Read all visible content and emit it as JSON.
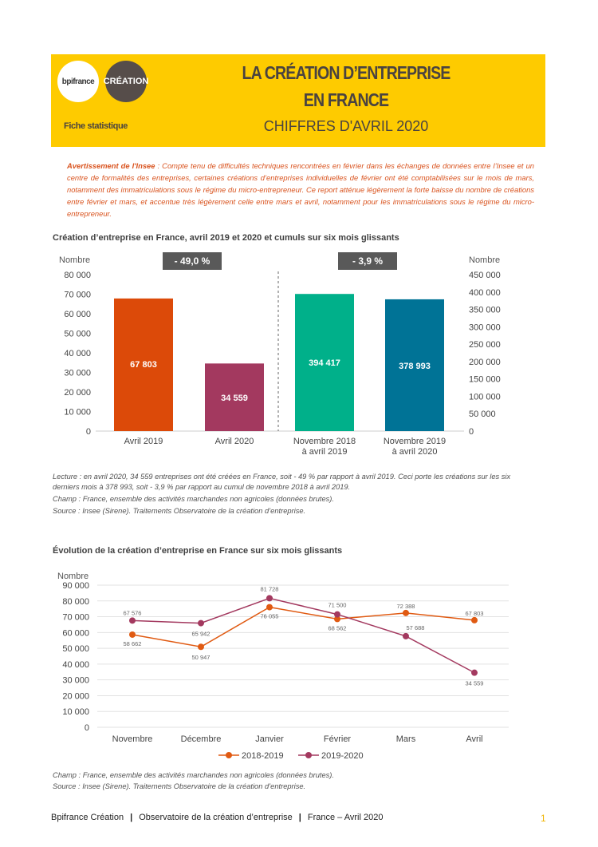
{
  "header": {
    "logo_bpi": "bpifrance",
    "logo_creation": "CRÉATION",
    "subtitle_left": "Fiche statistique",
    "title_line1": "LA CRÉATION D’ENTREPRISE",
    "title_line2": "EN FRANCE",
    "title_line3": "CHIFFRES D'AVRIL 2020"
  },
  "warning": {
    "label": "Avertissement de l'Insee",
    "text": " : Compte tenu de difficultés techniques rencontrées en février dans les échanges de données entre l’Insee et un centre de formalités des entreprises, certaines créations d’entreprises individuelles de février ont été comptabilisées sur le mois de mars, notamment des immatriculations sous le régime du micro-entrepreneur. Ce report atténue légèrement la forte baisse du nombre de créations entre février et mars, et accentue très légèrement celle entre mars et avril, notamment pour les immatriculations sous le régime du micro-entrepreneur."
  },
  "chart1_notes": {
    "lecture": "Lecture : en avril 2020, 34 559 entreprises ont été créées en France, soit - 49 % par rapport à avril 2019. Ceci porte les créations sur les six derniers mois à 378 993, soit - 3,9 % par rapport au cumul de novembre 2018 à avril 2019.",
    "champ": "Champ : France, ensemble des activités marchandes non agricoles (données brutes).",
    "source": "Source : Insee (Sirene). Traitements Observatoire de la création d’entreprise."
  },
  "chart2_notes": {
    "champ": "Champ : France, ensemble des activités marchandes non agricoles (données brutes).",
    "source": "Source : Insee (Sirene). Traitements Observatoire de la création d’entreprise."
  },
  "footer": {
    "org": "Bpifrance Création",
    "observatory": "Observatoire de la création d’entreprise",
    "period": "France – Avril 2020",
    "page": "1",
    "sep": "|"
  },
  "chart_data": [
    {
      "type": "bar",
      "title": "Création d’entreprise en France, avril 2019 et 2020 et cumuls sur six mois glissants",
      "ylabel_left": "Nombre",
      "ylabel_right": "Nombre",
      "ylim_left": [
        0,
        80000
      ],
      "ylim_right": [
        0,
        450000
      ],
      "yticks_left": [
        "0",
        "10 000",
        "20 000",
        "30 000",
        "40 000",
        "50 000",
        "60 000",
        "70 000",
        "80 000"
      ],
      "yticks_right": [
        "0",
        "50 000",
        "100 000",
        "150 000",
        "200 000",
        "250 000",
        "300 000",
        "350 000",
        "400 000",
        "450 000"
      ],
      "categories": [
        "Avril 2019",
        "Avril 2020",
        "Novembre 2018|à avril 2019",
        "Novembre 2019|à avril 2020"
      ],
      "values": [
        67803,
        34559,
        394417,
        378993
      ],
      "value_labels": [
        "67 803",
        "34 559",
        "394 417",
        "378 993"
      ],
      "axis": [
        "left",
        "left",
        "right",
        "right"
      ],
      "colors": [
        "#dc4a09",
        "#a3395f",
        "#00b08a",
        "#007396"
      ],
      "annotations": [
        "- 49,0 %",
        "- 3,9 %"
      ]
    },
    {
      "type": "line",
      "title": "Évolution de la création d’entreprise en France sur six mois glissants",
      "ylabel": "Nombre",
      "ylim": [
        0,
        90000
      ],
      "yticks": [
        "0",
        "10 000",
        "20 000",
        "30 000",
        "40 000",
        "50 000",
        "60 000",
        "70 000",
        "80 000",
        "90 000"
      ],
      "categories": [
        "Novembre",
        "Décembre",
        "Janvier",
        "Février",
        "Mars",
        "Avril"
      ],
      "legend": "bottom",
      "series": [
        {
          "name": "2018-2019",
          "color": "#e05a12",
          "values": [
            58662,
            50947,
            76055,
            68562,
            72388,
            67803
          ],
          "labels": [
            "58 662",
            "50 947",
            "76 055",
            "68 562",
            "72 388",
            "67 803"
          ]
        },
        {
          "name": "2019-2020",
          "color": "#a3395f",
          "values": [
            67576,
            65942,
            81728,
            71500,
            57688,
            34559
          ],
          "labels": [
            "67 576",
            "65 942",
            "81 728",
            "71 500",
            "57 688",
            "34 559"
          ]
        }
      ]
    }
  ]
}
